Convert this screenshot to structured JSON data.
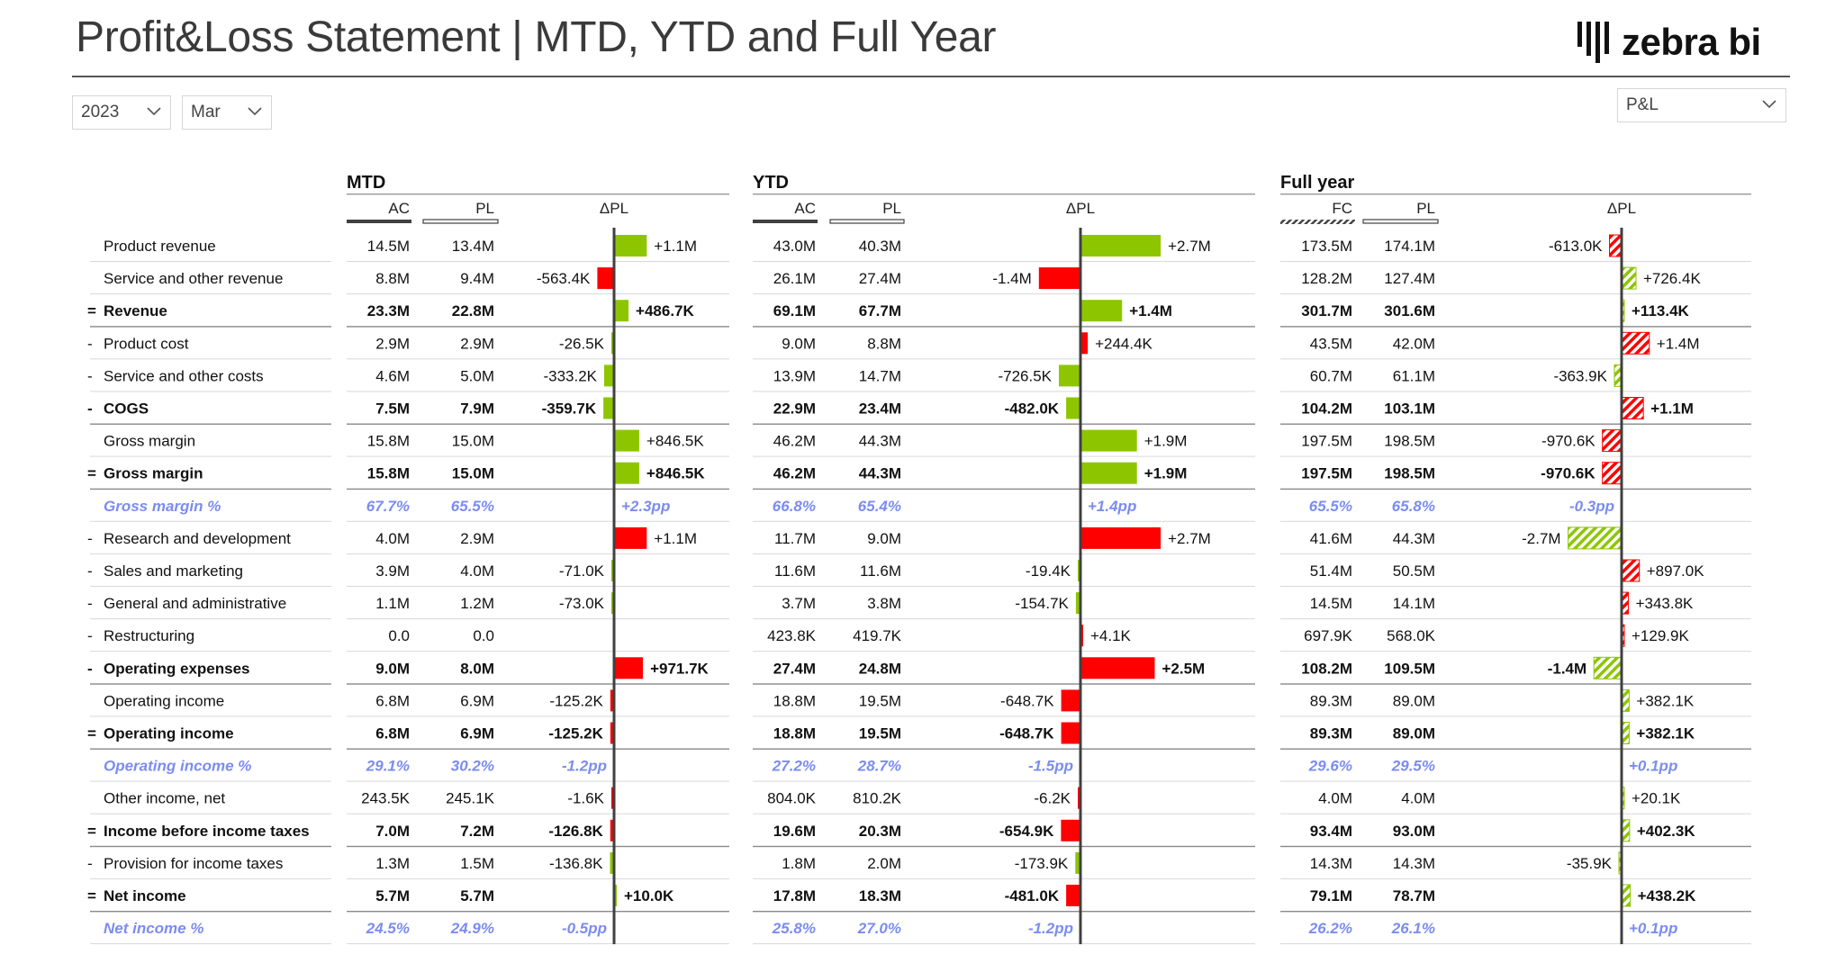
{
  "page": {
    "title": "Profit&Loss Statement | MTD, YTD and Full Year"
  },
  "logo": {
    "text": "zebra bi"
  },
  "filters": {
    "year": {
      "value": "2023"
    },
    "month": {
      "value": "Mar"
    },
    "statement": {
      "value": "P&L"
    }
  },
  "colors": {
    "positive": "#8DC600",
    "negative": "#FF0000",
    "percent_row": "#7B8CF0",
    "axis": "#404040"
  },
  "chart_data": {
    "type": "table",
    "sections": [
      {
        "title": "MTD",
        "columns": [
          "AC",
          "PL",
          "ΔPL"
        ],
        "actual_style": "actual",
        "variance_style": "solid"
      },
      {
        "title": "YTD",
        "columns": [
          "AC",
          "PL",
          "ΔPL"
        ],
        "actual_style": "actual",
        "variance_style": "solid"
      },
      {
        "title": "Full year",
        "columns": [
          "FC",
          "PL",
          "ΔPL"
        ],
        "actual_style": "forecast",
        "variance_style": "hatched"
      }
    ],
    "rows": [
      {
        "prefix": "",
        "label": "Product revenue",
        "style": "normal",
        "invert": false,
        "mtd": {
          "ac": "14.5M",
          "pl": "13.4M",
          "delta": 1.1,
          "delta_label": "+1.1M"
        },
        "ytd": {
          "ac": "43.0M",
          "pl": "40.3M",
          "delta": 2.7,
          "delta_label": "+2.7M"
        },
        "fy": {
          "ac": "173.5M",
          "pl": "174.1M",
          "delta": -0.613,
          "delta_label": "-613.0K"
        }
      },
      {
        "prefix": "",
        "label": "Service and other revenue",
        "style": "normal",
        "invert": false,
        "mtd": {
          "ac": "8.8M",
          "pl": "9.4M",
          "delta": -0.5634,
          "delta_label": "-563.4K"
        },
        "ytd": {
          "ac": "26.1M",
          "pl": "27.4M",
          "delta": -1.4,
          "delta_label": "-1.4M"
        },
        "fy": {
          "ac": "128.2M",
          "pl": "127.4M",
          "delta": 0.7264,
          "delta_label": "+726.4K"
        }
      },
      {
        "prefix": "=",
        "label": "Revenue",
        "style": "bold",
        "invert": false,
        "mtd": {
          "ac": "23.3M",
          "pl": "22.8M",
          "delta": 0.4867,
          "delta_label": "+486.7K"
        },
        "ytd": {
          "ac": "69.1M",
          "pl": "67.7M",
          "delta": 1.4,
          "delta_label": "+1.4M"
        },
        "fy": {
          "ac": "301.7M",
          "pl": "301.6M",
          "delta": 0.1134,
          "delta_label": "+113.4K"
        }
      },
      {
        "prefix": "-",
        "label": "Product cost",
        "style": "normal",
        "invert": true,
        "mtd": {
          "ac": "2.9M",
          "pl": "2.9M",
          "delta": -0.0265,
          "delta_label": "-26.5K"
        },
        "ytd": {
          "ac": "9.0M",
          "pl": "8.8M",
          "delta": 0.2444,
          "delta_label": "+244.4K"
        },
        "fy": {
          "ac": "43.5M",
          "pl": "42.0M",
          "delta": 1.4,
          "delta_label": "+1.4M"
        }
      },
      {
        "prefix": "-",
        "label": "Service and other costs",
        "style": "normal",
        "invert": true,
        "mtd": {
          "ac": "4.6M",
          "pl": "5.0M",
          "delta": -0.3332,
          "delta_label": "-333.2K"
        },
        "ytd": {
          "ac": "13.9M",
          "pl": "14.7M",
          "delta": -0.7265,
          "delta_label": "-726.5K"
        },
        "fy": {
          "ac": "60.7M",
          "pl": "61.1M",
          "delta": -0.3639,
          "delta_label": "-363.9K"
        }
      },
      {
        "prefix": "-",
        "label": "COGS",
        "style": "bold",
        "invert": true,
        "mtd": {
          "ac": "7.5M",
          "pl": "7.9M",
          "delta": -0.3597,
          "delta_label": "-359.7K"
        },
        "ytd": {
          "ac": "22.9M",
          "pl": "23.4M",
          "delta": -0.482,
          "delta_label": "-482.0K"
        },
        "fy": {
          "ac": "104.2M",
          "pl": "103.1M",
          "delta": 1.1,
          "delta_label": "+1.1M"
        }
      },
      {
        "prefix": "",
        "label": "Gross margin",
        "style": "normal",
        "invert": false,
        "mtd": {
          "ac": "15.8M",
          "pl": "15.0M",
          "delta": 0.8465,
          "delta_label": "+846.5K"
        },
        "ytd": {
          "ac": "46.2M",
          "pl": "44.3M",
          "delta": 1.9,
          "delta_label": "+1.9M"
        },
        "fy": {
          "ac": "197.5M",
          "pl": "198.5M",
          "delta": -0.9706,
          "delta_label": "-970.6K"
        }
      },
      {
        "prefix": "=",
        "label": "Gross margin",
        "style": "bold",
        "invert": false,
        "mtd": {
          "ac": "15.8M",
          "pl": "15.0M",
          "delta": 0.8465,
          "delta_label": "+846.5K"
        },
        "ytd": {
          "ac": "46.2M",
          "pl": "44.3M",
          "delta": 1.9,
          "delta_label": "+1.9M"
        },
        "fy": {
          "ac": "197.5M",
          "pl": "198.5M",
          "delta": -0.9706,
          "delta_label": "-970.6K"
        }
      },
      {
        "prefix": "",
        "label": "Gross margin %",
        "style": "percent",
        "invert": false,
        "mtd": {
          "ac": "67.7%",
          "pl": "65.5%",
          "delta": 2.3,
          "delta_label": "+2.3pp"
        },
        "ytd": {
          "ac": "66.8%",
          "pl": "65.4%",
          "delta": 1.4,
          "delta_label": "+1.4pp"
        },
        "fy": {
          "ac": "65.5%",
          "pl": "65.8%",
          "delta": -0.3,
          "delta_label": "-0.3pp"
        }
      },
      {
        "prefix": "-",
        "label": "Research and development",
        "style": "normal",
        "invert": true,
        "mtd": {
          "ac": "4.0M",
          "pl": "2.9M",
          "delta": 1.1,
          "delta_label": "+1.1M"
        },
        "ytd": {
          "ac": "11.7M",
          "pl": "9.0M",
          "delta": 2.7,
          "delta_label": "+2.7M"
        },
        "fy": {
          "ac": "41.6M",
          "pl": "44.3M",
          "delta": -2.7,
          "delta_label": "-2.7M"
        }
      },
      {
        "prefix": "-",
        "label": "Sales and marketing",
        "style": "normal",
        "invert": true,
        "mtd": {
          "ac": "3.9M",
          "pl": "4.0M",
          "delta": -0.071,
          "delta_label": "-71.0K"
        },
        "ytd": {
          "ac": "11.6M",
          "pl": "11.6M",
          "delta": -0.0194,
          "delta_label": "-19.4K"
        },
        "fy": {
          "ac": "51.4M",
          "pl": "50.5M",
          "delta": 0.897,
          "delta_label": "+897.0K"
        }
      },
      {
        "prefix": "-",
        "label": "General and administrative",
        "style": "normal",
        "invert": true,
        "mtd": {
          "ac": "1.1M",
          "pl": "1.2M",
          "delta": -0.073,
          "delta_label": "-73.0K"
        },
        "ytd": {
          "ac": "3.7M",
          "pl": "3.8M",
          "delta": -0.1547,
          "delta_label": "-154.7K"
        },
        "fy": {
          "ac": "14.5M",
          "pl": "14.1M",
          "delta": 0.3438,
          "delta_label": "+343.8K"
        }
      },
      {
        "prefix": "-",
        "label": "Restructuring",
        "style": "normal",
        "invert": true,
        "mtd": {
          "ac": "0.0",
          "pl": "0.0",
          "delta": 0,
          "delta_label": ""
        },
        "ytd": {
          "ac": "423.8K",
          "pl": "419.7K",
          "delta": 0.0041,
          "delta_label": "+4.1K"
        },
        "fy": {
          "ac": "697.9K",
          "pl": "568.0K",
          "delta": 0.1299,
          "delta_label": "+129.9K"
        }
      },
      {
        "prefix": "-",
        "label": "Operating expenses",
        "style": "bold",
        "invert": true,
        "mtd": {
          "ac": "9.0M",
          "pl": "8.0M",
          "delta": 0.9717,
          "delta_label": "+971.7K"
        },
        "ytd": {
          "ac": "27.4M",
          "pl": "24.8M",
          "delta": 2.5,
          "delta_label": "+2.5M"
        },
        "fy": {
          "ac": "108.2M",
          "pl": "109.5M",
          "delta": -1.4,
          "delta_label": "-1.4M"
        }
      },
      {
        "prefix": "",
        "label": "Operating income",
        "style": "normal",
        "invert": false,
        "mtd": {
          "ac": "6.8M",
          "pl": "6.9M",
          "delta": -0.1252,
          "delta_label": "-125.2K"
        },
        "ytd": {
          "ac": "18.8M",
          "pl": "19.5M",
          "delta": -0.6487,
          "delta_label": "-648.7K"
        },
        "fy": {
          "ac": "89.3M",
          "pl": "89.0M",
          "delta": 0.3821,
          "delta_label": "+382.1K"
        }
      },
      {
        "prefix": "=",
        "label": "Operating income",
        "style": "bold",
        "invert": false,
        "mtd": {
          "ac": "6.8M",
          "pl": "6.9M",
          "delta": -0.1252,
          "delta_label": "-125.2K"
        },
        "ytd": {
          "ac": "18.8M",
          "pl": "19.5M",
          "delta": -0.6487,
          "delta_label": "-648.7K"
        },
        "fy": {
          "ac": "89.3M",
          "pl": "89.0M",
          "delta": 0.3821,
          "delta_label": "+382.1K"
        }
      },
      {
        "prefix": "",
        "label": "Operating income %",
        "style": "percent",
        "invert": false,
        "mtd": {
          "ac": "29.1%",
          "pl": "30.2%",
          "delta": -1.2,
          "delta_label": "-1.2pp"
        },
        "ytd": {
          "ac": "27.2%",
          "pl": "28.7%",
          "delta": -1.5,
          "delta_label": "-1.5pp"
        },
        "fy": {
          "ac": "29.6%",
          "pl": "29.5%",
          "delta": 0.1,
          "delta_label": "+0.1pp"
        }
      },
      {
        "prefix": "",
        "label": "Other income, net",
        "style": "normal",
        "invert": false,
        "mtd": {
          "ac": "243.5K",
          "pl": "245.1K",
          "delta": -0.0016,
          "delta_label": "-1.6K"
        },
        "ytd": {
          "ac": "804.0K",
          "pl": "810.2K",
          "delta": -0.0062,
          "delta_label": "-6.2K"
        },
        "fy": {
          "ac": "4.0M",
          "pl": "4.0M",
          "delta": 0.0201,
          "delta_label": "+20.1K"
        }
      },
      {
        "prefix": "=",
        "label": "Income before income taxes",
        "style": "bold",
        "invert": false,
        "mtd": {
          "ac": "7.0M",
          "pl": "7.2M",
          "delta": -0.1268,
          "delta_label": "-126.8K"
        },
        "ytd": {
          "ac": "19.6M",
          "pl": "20.3M",
          "delta": -0.6549,
          "delta_label": "-654.9K"
        },
        "fy": {
          "ac": "93.4M",
          "pl": "93.0M",
          "delta": 0.4023,
          "delta_label": "+402.3K"
        }
      },
      {
        "prefix": "-",
        "label": "Provision for income taxes",
        "style": "normal",
        "invert": true,
        "mtd": {
          "ac": "1.3M",
          "pl": "1.5M",
          "delta": -0.1368,
          "delta_label": "-136.8K"
        },
        "ytd": {
          "ac": "1.8M",
          "pl": "2.0M",
          "delta": -0.1739,
          "delta_label": "-173.9K"
        },
        "fy": {
          "ac": "14.3M",
          "pl": "14.3M",
          "delta": -0.0359,
          "delta_label": "-35.9K"
        }
      },
      {
        "prefix": "=",
        "label": "Net income",
        "style": "bold",
        "invert": false,
        "mtd": {
          "ac": "5.7M",
          "pl": "5.7M",
          "delta": 0.01,
          "delta_label": "+10.0K"
        },
        "ytd": {
          "ac": "17.8M",
          "pl": "18.3M",
          "delta": -0.481,
          "delta_label": "-481.0K"
        },
        "fy": {
          "ac": "79.1M",
          "pl": "78.7M",
          "delta": 0.4382,
          "delta_label": "+438.2K"
        }
      },
      {
        "prefix": "",
        "label": "Net income %",
        "style": "percent",
        "invert": false,
        "mtd": {
          "ac": "24.5%",
          "pl": "24.9%",
          "delta": -0.5,
          "delta_label": "-0.5pp"
        },
        "ytd": {
          "ac": "25.8%",
          "pl": "27.0%",
          "delta": -1.2,
          "delta_label": "-1.2pp"
        },
        "fy": {
          "ac": "26.2%",
          "pl": "26.1%",
          "delta": 0.1,
          "delta_label": "+0.1pp"
        }
      }
    ]
  }
}
